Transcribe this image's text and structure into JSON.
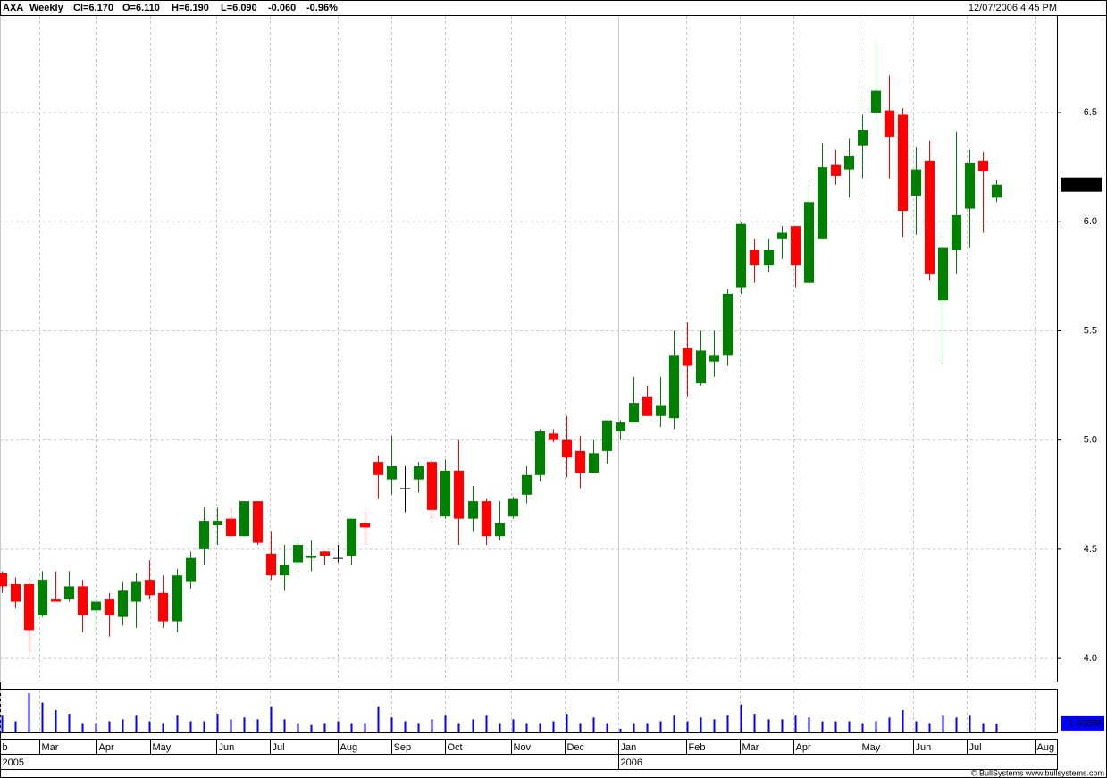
{
  "chart_data": {
    "type": "candlestick",
    "header": {
      "symbol": "AXA",
      "period": "Weekly",
      "fields": [
        "Cl=6.170",
        "O=6.110",
        "H=6.190",
        "L=6.090"
      ],
      "change": [
        "-0.060",
        "-0.96%"
      ],
      "change_color": "#ff0000",
      "timestamp": "12/07/2006 4:45 PM"
    },
    "footer": "© BullSystems www.bullsystems.com",
    "x": [
      0,
      1,
      2,
      3,
      4,
      5,
      6,
      7,
      8,
      9,
      10,
      11,
      12,
      13,
      14,
      15,
      16,
      17,
      18,
      19,
      20,
      21,
      22,
      23,
      24,
      25,
      26,
      27,
      28,
      29,
      30,
      31,
      32,
      33,
      34,
      35,
      36,
      37,
      38,
      39,
      40,
      41,
      42,
      43,
      44,
      45,
      46,
      47,
      48,
      49,
      50,
      51,
      52,
      53,
      54,
      55,
      56,
      57,
      58,
      59,
      60,
      61,
      62,
      63,
      64,
      65,
      66,
      67,
      68,
      69,
      70,
      71,
      72,
      73,
      74
    ],
    "open": [
      4.39,
      4.34,
      4.34,
      4.2,
      4.27,
      4.27,
      4.33,
      4.22,
      4.27,
      4.19,
      4.26,
      4.36,
      4.3,
      4.17,
      4.35,
      4.5,
      4.61,
      4.64,
      4.56,
      4.72,
      4.48,
      4.38,
      4.44,
      4.46,
      4.49,
      4.46,
      4.47,
      4.62,
      4.9,
      4.82,
      4.78,
      4.82,
      4.9,
      4.65,
      4.86,
      4.64,
      4.72,
      4.56,
      4.65,
      4.75,
      4.84,
      5.03,
      5.0,
      4.95,
      4.85,
      4.95,
      5.04,
      5.08,
      5.2,
      5.11,
      5.1,
      5.42,
      5.26,
      5.36,
      5.39,
      5.7,
      5.87,
      5.8,
      5.92,
      5.98,
      5.72,
      5.92,
      6.26,
      6.24,
      6.35,
      6.5,
      6.51,
      6.49,
      6.12,
      6.28,
      5.64,
      5.87,
      6.06,
      6.28,
      6.11
    ],
    "high": [
      4.4,
      4.37,
      4.37,
      4.4,
      4.4,
      4.4,
      4.36,
      4.27,
      4.3,
      4.35,
      4.39,
      4.45,
      4.38,
      4.41,
      4.49,
      4.69,
      4.69,
      4.69,
      4.72,
      4.72,
      4.58,
      4.52,
      4.54,
      4.54,
      4.49,
      4.52,
      4.64,
      4.67,
      4.93,
      5.02,
      4.88,
      4.9,
      4.91,
      4.91,
      5.0,
      4.79,
      4.73,
      4.72,
      4.74,
      4.88,
      5.05,
      5.05,
      5.11,
      5.02,
      5.0,
      5.09,
      5.09,
      5.29,
      5.25,
      5.29,
      5.5,
      5.54,
      5.5,
      5.5,
      5.69,
      6.0,
      5.92,
      5.92,
      5.98,
      5.98,
      6.17,
      6.36,
      6.33,
      6.38,
      6.49,
      6.82,
      6.67,
      6.52,
      6.34,
      6.37,
      5.93,
      6.41,
      6.33,
      6.32,
      6.19
    ],
    "low": [
      4.3,
      4.23,
      4.03,
      4.19,
      4.26,
      4.26,
      4.12,
      4.12,
      4.1,
      4.15,
      4.14,
      4.27,
      4.14,
      4.12,
      4.32,
      4.43,
      4.52,
      4.56,
      4.56,
      4.52,
      4.36,
      4.31,
      4.41,
      4.4,
      4.43,
      4.44,
      4.43,
      4.52,
      4.73,
      4.75,
      4.67,
      4.76,
      4.64,
      4.64,
      4.52,
      4.58,
      4.52,
      4.54,
      4.64,
      4.71,
      4.81,
      4.99,
      4.83,
      4.78,
      4.85,
      4.89,
      5.0,
      5.08,
      5.11,
      5.06,
      5.05,
      5.2,
      5.25,
      5.29,
      5.34,
      5.67,
      5.72,
      5.77,
      5.83,
      5.7,
      5.72,
      5.92,
      6.17,
      6.11,
      6.2,
      6.46,
      6.2,
      5.93,
      5.94,
      5.73,
      5.35,
      5.76,
      5.88,
      5.95,
      6.09
    ],
    "close": [
      4.33,
      4.26,
      4.13,
      4.36,
      4.26,
      4.33,
      4.2,
      4.26,
      4.2,
      4.31,
      4.35,
      4.29,
      4.17,
      4.38,
      4.46,
      4.63,
      4.63,
      4.56,
      4.72,
      4.53,
      4.38,
      4.43,
      4.52,
      4.47,
      4.47,
      4.46,
      4.64,
      4.6,
      4.84,
      4.88,
      4.78,
      4.88,
      4.68,
      4.86,
      4.64,
      4.72,
      4.56,
      4.62,
      4.73,
      4.84,
      5.04,
      5.0,
      4.92,
      4.85,
      4.94,
      5.09,
      5.08,
      5.17,
      5.11,
      5.16,
      5.39,
      5.34,
      5.41,
      5.39,
      5.67,
      5.99,
      5.8,
      5.87,
      5.95,
      5.8,
      6.09,
      6.25,
      6.21,
      6.3,
      6.42,
      6.6,
      6.39,
      6.05,
      6.24,
      5.76,
      5.88,
      6.03,
      6.27,
      6.23,
      6.17
    ],
    "close_labels": [
      null,
      null,
      null,
      null,
      null,
      null,
      null,
      null,
      null,
      null,
      null,
      null,
      null,
      null,
      null,
      null,
      null,
      null,
      null,
      null,
      null,
      null,
      null,
      null,
      null,
      null,
      null,
      null,
      null,
      null,
      null,
      null,
      null,
      null,
      null,
      null,
      null,
      null,
      null,
      null,
      null,
      null,
      null,
      null,
      null,
      null,
      null,
      null,
      null,
      null,
      null,
      null,
      null,
      null,
      null,
      null,
      null,
      null,
      null,
      null,
      null,
      null,
      null,
      null,
      null,
      null,
      null,
      null,
      null,
      null,
      null,
      null,
      null,
      null,
      "6.170"
    ],
    "up_color": "#008000",
    "down_color": "#ff0000",
    "flat_color": "#000000",
    "xlim": [
      -0.13,
      78.5
    ],
    "xticks": [
      {
        "value": -0.13,
        "label": "b"
      },
      {
        "value": 2.79,
        "label": "Mar"
      },
      {
        "value": 7.04,
        "label": "Apr"
      },
      {
        "value": 11.03,
        "label": "May"
      },
      {
        "value": 15.95,
        "label": "Jun"
      },
      {
        "value": 19.93,
        "label": "Jul"
      },
      {
        "value": 24.98,
        "label": "Aug"
      },
      {
        "value": 28.97,
        "label": "Sep"
      },
      {
        "value": 32.96,
        "label": "Oct"
      },
      {
        "value": 37.87,
        "label": "Nov"
      },
      {
        "value": 41.86,
        "label": "Dec"
      },
      {
        "value": 45.85,
        "label": "Jan"
      },
      {
        "value": 50.9,
        "label": "Feb"
      },
      {
        "value": 54.88,
        "label": "Mar"
      },
      {
        "value": 58.87,
        "label": "Apr"
      },
      {
        "value": 63.79,
        "label": "May"
      },
      {
        "value": 67.77,
        "label": "Jun"
      },
      {
        "value": 71.76,
        "label": "Jul"
      },
      {
        "value": 76.81,
        "label": "Aug"
      }
    ],
    "year_ticks": [
      {
        "value": -0.13,
        "label": "2005"
      },
      {
        "value": 45.85,
        "label": "2006"
      }
    ],
    "ylim": [
      3.894,
      6.942
    ],
    "yticks": [
      {
        "value": 4,
        "label": "4.0"
      },
      {
        "value": 4.5,
        "label": "4.5"
      },
      {
        "value": 5,
        "label": "5.0"
      },
      {
        "value": 5.5,
        "label": "5.5"
      },
      {
        "value": 6,
        "label": "6.0"
      },
      {
        "value": 6.5,
        "label": "6.5"
      }
    ],
    "grid": true,
    "volume": {
      "color": "#0000ff",
      "ylim": [
        0,
        9
      ],
      "values": [
        3.6,
        2.4,
        8.4,
        6.4,
        4.8,
        4,
        2,
        2,
        2.4,
        2.8,
        3.6,
        2.4,
        2,
        3.6,
        2.4,
        2.4,
        4,
        2.8,
        3.2,
        2.8,
        5.6,
        2.8,
        2,
        1.6,
        2,
        2.4,
        2,
        2,
        5.6,
        3.2,
        2.4,
        2,
        2.8,
        3.6,
        2,
        2.8,
        3.6,
        2,
        2.8,
        2,
        2,
        2.4,
        4,
        2,
        3.2,
        2,
        0.8,
        2,
        2,
        2.4,
        3.6,
        2.4,
        3.2,
        2.8,
        3.6,
        6,
        4,
        2.8,
        2.8,
        3.6,
        3.2,
        2.4,
        2.4,
        2.4,
        2,
        2.4,
        3.2,
        4.8,
        2.4,
        2,
        3.6,
        3.2,
        3.6,
        2,
        1.933
      ],
      "value_labels": [
        null,
        null,
        null,
        null,
        null,
        null,
        null,
        null,
        null,
        null,
        null,
        null,
        null,
        null,
        null,
        null,
        null,
        null,
        null,
        null,
        null,
        null,
        null,
        null,
        null,
        null,
        null,
        null,
        null,
        null,
        null,
        null,
        null,
        null,
        null,
        null,
        null,
        null,
        null,
        null,
        null,
        null,
        null,
        null,
        null,
        null,
        null,
        null,
        null,
        null,
        null,
        null,
        null,
        null,
        null,
        null,
        null,
        null,
        null,
        null,
        null,
        null,
        null,
        null,
        null,
        null,
        null,
        null,
        null,
        null,
        null,
        null,
        null,
        null,
        "1.933M"
      ]
    }
  }
}
